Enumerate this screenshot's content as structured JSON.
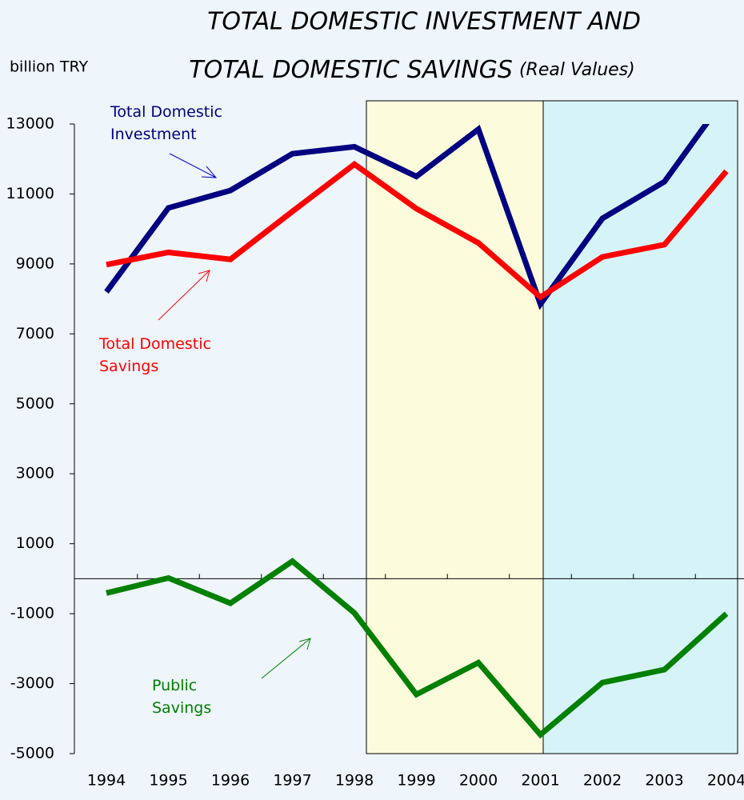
{
  "chart_data": {
    "type": "line",
    "title": [
      "TOTAL DOMESTIC INVESTMENT AND",
      "TOTAL DOMESTIC SAVINGS"
    ],
    "subtitle": "(Real Values)",
    "y_axis_label": "billion TRY",
    "categories": [
      "1994",
      "1995",
      "1996",
      "1997",
      "1998",
      "1999",
      "2000",
      "2001",
      "2002",
      "2003",
      "2004"
    ],
    "series": [
      {
        "name": "Total Domestic Investment",
        "color": "#000080",
        "values": [
          8200,
          10600,
          11100,
          12150,
          12350,
          11500,
          12850,
          7850,
          10300,
          11350,
          13800
        ]
      },
      {
        "name": "Total Domestic Savings",
        "color": "#ff0000",
        "values": [
          8980,
          9330,
          9130,
          10500,
          11850,
          10580,
          9600,
          8050,
          9200,
          9550,
          11650
        ]
      },
      {
        "name": "Public Savings",
        "color": "#008000",
        "values": [
          -410,
          20,
          -700,
          500,
          -980,
          -3310,
          -2400,
          -4460,
          -2970,
          -2600,
          -1000
        ]
      }
    ],
    "ylim": [
      -5000,
      13000
    ],
    "yticks": [
      -5000,
      -3000,
      -1000,
      1000,
      3000,
      5000,
      7000,
      9000,
      11000,
      13000
    ]
  }
}
